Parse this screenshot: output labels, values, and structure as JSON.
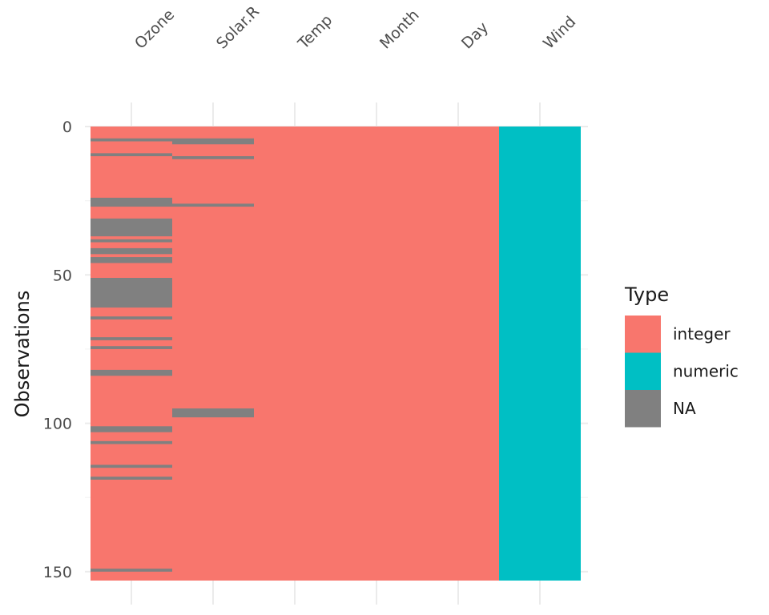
{
  "chart_data": {
    "type": "heatmap",
    "title": "",
    "xlabel": "",
    "ylabel": "Observations",
    "columns": [
      "Ozone",
      "Solar.R",
      "Temp",
      "Month",
      "Day",
      "Wind"
    ],
    "column_types": [
      "integer",
      "integer",
      "integer",
      "integer",
      "integer",
      "numeric"
    ],
    "n_observations": 153,
    "ylim": [
      0,
      153
    ],
    "y_ticks": [
      0,
      50,
      100,
      150
    ],
    "y_reversed": true,
    "missing_rows": {
      "Ozone": [
        5,
        10,
        25,
        26,
        27,
        32,
        33,
        34,
        35,
        36,
        37,
        39,
        42,
        43,
        45,
        46,
        52,
        53,
        54,
        55,
        56,
        57,
        58,
        59,
        60,
        61,
        65,
        72,
        75,
        83,
        84,
        102,
        103,
        107,
        115,
        119,
        150
      ],
      "Solar.R": [
        5,
        6,
        11,
        27,
        96,
        97,
        98
      ],
      "Temp": [],
      "Month": [],
      "Day": [],
      "Wind": []
    },
    "legend": {
      "title": "Type",
      "position": "right",
      "entries": [
        {
          "label": "integer",
          "color": "#F8766D"
        },
        {
          "label": "numeric",
          "color": "#00BFC4"
        },
        {
          "label": "NA",
          "color": "#808080"
        }
      ]
    },
    "grid": true
  }
}
